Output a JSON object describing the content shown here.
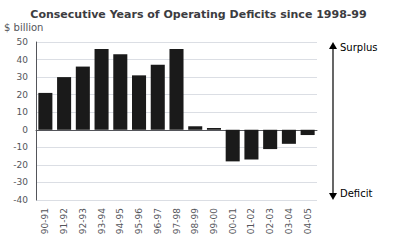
{
  "chart_data": {
    "type": "bar",
    "title": "Consecutive Years of Operating Deficits since 1998-99",
    "ylabel": "$ billion",
    "categories": [
      "90-91",
      "91-92",
      "92-93",
      "93-94",
      "94-95",
      "95-96",
      "96-97",
      "97-98",
      "98-99",
      "99-00",
      "00-01",
      "01-02",
      "02-03",
      "03-04",
      "04-05"
    ],
    "values": [
      21,
      30,
      36,
      46,
      43,
      31,
      37,
      46,
      2,
      1,
      -18,
      -17,
      -11,
      -8,
      -3
    ],
    "color": "#1a1a1a",
    "ylim": [
      -40,
      50
    ],
    "yticks": [
      -40,
      -30,
      -20,
      -10,
      0,
      10,
      20,
      30,
      40,
      50
    ],
    "grid": true,
    "annotations": [
      "Surplus",
      "Deficit"
    ]
  }
}
